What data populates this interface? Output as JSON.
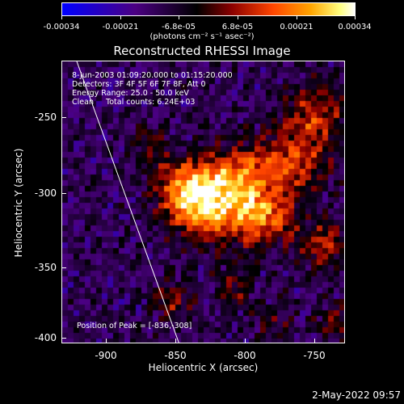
{
  "colorbar": {
    "ticks": [
      "-0.00034",
      "-0.00021",
      "-6.8e-05",
      "6.8e-05",
      "0.00021",
      "0.00034"
    ],
    "units": "(photons cm⁻² s⁻¹ asec⁻²)",
    "colors": [
      "#0000ff",
      "#4b0082",
      "#000000",
      "#8b0000",
      "#ff4500",
      "#ffa500",
      "#ffff80",
      "#ffffff"
    ]
  },
  "title": "Reconstructed RHESSI Image",
  "info": {
    "line1": "8-Jun-2003 01:09:20.000 to 01:15:20.000",
    "line2": "Detectors: 3F 4F 5F 6F 7F 8F, Att 0",
    "line3": "Energy Range: 25.0 - 50.0 keV",
    "line4": "Clean     Total counts: 6.24E+03",
    "peak": "Position of Peak = [-836,-308]"
  },
  "axes": {
    "xlabel": "Heliocentric X (arcsec)",
    "ylabel": "Heliocentric Y (arcsec)",
    "xticks": [
      "-900",
      "-850",
      "-800",
      "-750"
    ],
    "yticks": [
      "-250",
      "-300",
      "-350",
      "-400"
    ],
    "xrange": [
      -934,
      -738
    ],
    "yrange": [
      -404,
      -207
    ]
  },
  "timestamp": "2-May-2022 09:57"
}
